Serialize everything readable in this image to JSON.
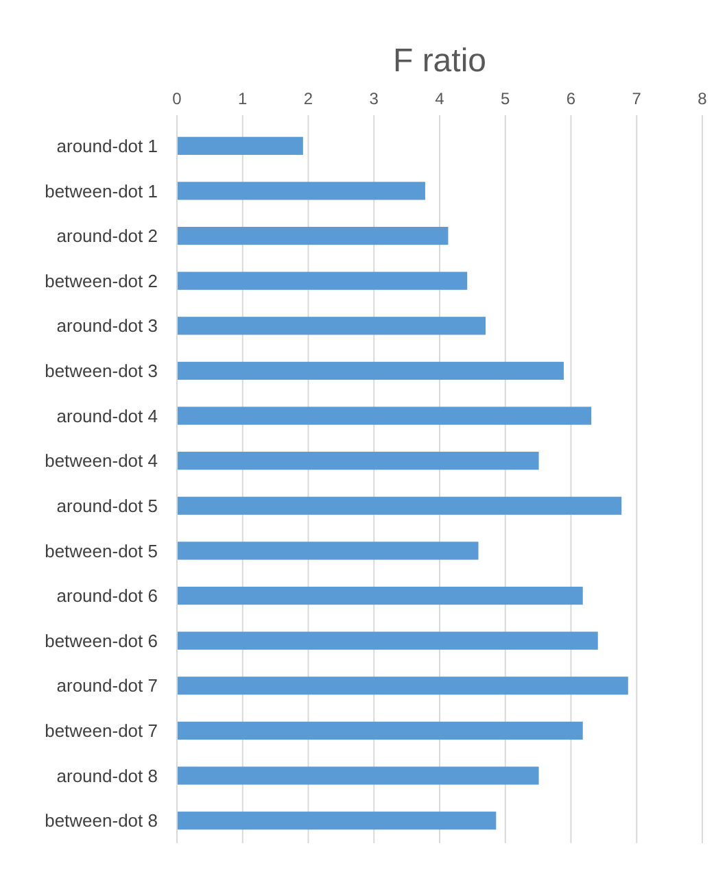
{
  "chart_data": {
    "type": "bar",
    "orientation": "horizontal",
    "title": "F ratio",
    "categories": [
      "around-dot 1",
      "between-dot 1",
      "around-dot 2",
      "between-dot 2",
      "around-dot 3",
      "between-dot 3",
      "around-dot 4",
      "between-dot 4",
      "around-dot 5",
      "between-dot 5",
      "around-dot 6",
      "between-dot 6",
      "around-dot 7",
      "between-dot 7",
      "around-dot 8",
      "between-dot 8"
    ],
    "values": [
      1.92,
      3.78,
      4.13,
      4.42,
      4.7,
      5.89,
      6.31,
      5.51,
      6.77,
      4.59,
      6.18,
      6.41,
      6.87,
      6.18,
      5.51,
      4.86
    ],
    "color": "#5b9bd5",
    "xlim": [
      0,
      8
    ],
    "xticks": [
      0,
      1,
      2,
      3,
      4,
      5,
      6,
      7,
      8
    ],
    "grid": "x"
  }
}
